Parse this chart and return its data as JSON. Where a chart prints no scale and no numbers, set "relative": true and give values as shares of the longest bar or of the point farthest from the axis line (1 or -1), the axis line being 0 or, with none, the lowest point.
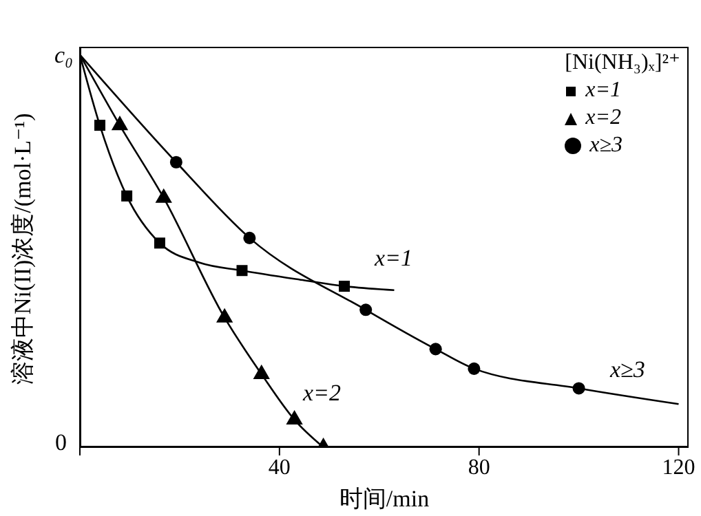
{
  "chart_data": {
    "type": "scatter",
    "xlabel": "时间/min",
    "ylabel": "溶液中Ni(II)浓度/(mol·L⁻¹)",
    "legend_title": "[Ni(NH₃)ₓ]²⁺",
    "legend": "top right",
    "relative": true,
    "xlim": [
      0,
      122
    ],
    "xticks": [
      {
        "value": 0,
        "label": null
      },
      40,
      80,
      120
    ],
    "series": [
      {
        "name": "x=1",
        "type": "scatter",
        "marker": "square",
        "color": "#000000",
        "x": [
          4,
          9.4,
          16,
          32.5,
          53
        ],
        "values": [
          0.82,
          0.64,
          0.52,
          0.45,
          0.41
        ]
      },
      {
        "name": "x=2",
        "type": "scatter",
        "marker": "triangle",
        "color": "#000000",
        "x": [
          8,
          16.8,
          29,
          36.4,
          43,
          48.8
        ],
        "values": [
          0.82,
          0.635,
          0.33,
          0.186,
          0.07,
          0
        ]
      },
      {
        "name": "x≥3",
        "type": "scatter",
        "marker": "circle",
        "color": "#000000",
        "x": [
          19.3,
          34,
          57.3,
          71.3,
          79,
          100
        ],
        "values": [
          0.726,
          0.533,
          0.35,
          0.25,
          0.2,
          0.15
        ]
      },
      {
        "type": "line",
        "marker": "none",
        "color": "#000000",
        "x": [
          0,
          4,
          9.4,
          16,
          24,
          32.5,
          45,
          53,
          63
        ],
        "values": [
          1,
          0.82,
          0.64,
          0.52,
          0.47,
          0.45,
          0.425,
          0.41,
          0.4
        ]
      },
      {
        "type": "line",
        "marker": "none",
        "color": "#000000",
        "x": [
          0,
          8,
          16.8,
          29,
          36.4,
          43,
          48.8
        ],
        "values": [
          1,
          0.82,
          0.635,
          0.33,
          0.186,
          0.07,
          0
        ]
      },
      {
        "type": "line",
        "marker": "none",
        "color": "#000000",
        "x": [
          0,
          19.3,
          34,
          57.3,
          71.3,
          79,
          100,
          120
        ],
        "values": [
          1,
          0.726,
          0.533,
          0.35,
          0.25,
          0.2,
          0.15,
          0.11
        ]
      }
    ],
    "annotations": [
      "x=1",
      "x=2",
      "x≥3",
      {
        "text": "c₀",
        "x": 0,
        "y": 1
      },
      "0"
    ]
  }
}
